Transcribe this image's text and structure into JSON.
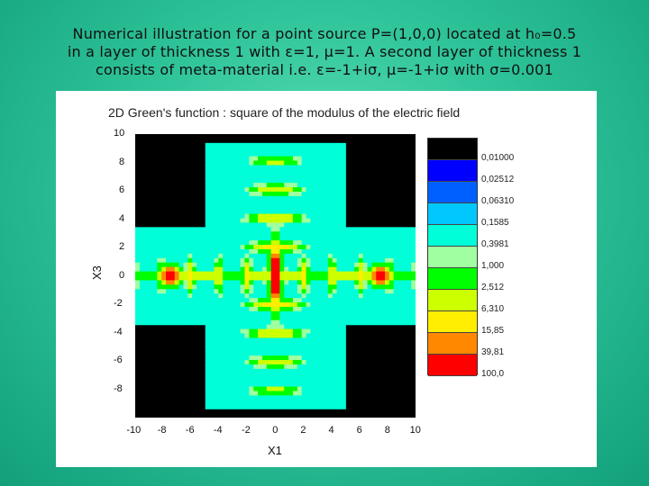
{
  "slide": {
    "title_lines": [
      "Numerical illustration for a point source P=(1,0,0) located at h₀=0.5",
      "in a layer of thickness 1 with ε=1, μ=1. A second layer of thickness 1",
      "consists of meta-material i.e. ε=-1+iσ, μ=-1+iσ with σ=0.001"
    ]
  },
  "chart_data": {
    "type": "heatmap",
    "title": "2D Green's function : square of the modulus of the electric field",
    "xlabel": "X1",
    "ylabel": "X3",
    "xlim": [
      -10,
      10
    ],
    "ylim": [
      -10,
      10
    ],
    "x_ticks": [
      "-10",
      "-8",
      "-6",
      "-4",
      "-2",
      "0",
      "2",
      "4",
      "6",
      "8",
      "10"
    ],
    "y_ticks": [
      "10",
      "8",
      "6",
      "4",
      "2",
      "0",
      "-2",
      "-4",
      "-6",
      "-8"
    ],
    "colorbar": {
      "levels": [
        "0,01000",
        "0,02512",
        "0,06310",
        "0,1585",
        "0,3981",
        "1,000",
        "2,512",
        "6,310",
        "15,85",
        "39,81",
        "100,0"
      ],
      "colors": [
        "#000000",
        "#0000ff",
        "#0060ff",
        "#00c8ff",
        "#00ffd8",
        "#a0ffa0",
        "#00ff00",
        "#ccff00",
        "#ffee00",
        "#ff8800",
        "#ff0000"
      ]
    },
    "background_color": "#000000",
    "peak_color": "#ffffff"
  }
}
